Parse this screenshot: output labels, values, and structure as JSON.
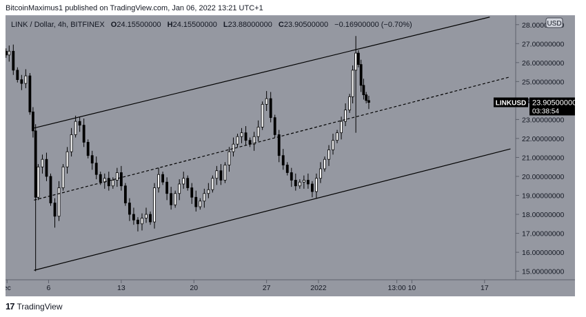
{
  "header": {
    "publish_line": "BitcoinMaximus1 published on TradingView.com, Jan 06, 2022 13:21 UTC+1"
  },
  "chart_info": {
    "symbol_line": "LINK / Dollar, 4h, BITFINEX",
    "ohlc": [
      {
        "k": "O",
        "v": "24.15500000"
      },
      {
        "k": "H",
        "v": "24.15500000"
      },
      {
        "k": "L",
        "v": "23.88000000"
      },
      {
        "k": "C",
        "v": "23.90500000"
      }
    ],
    "change": "−0.16900000 (−0.70%)",
    "currency": "USD"
  },
  "price_tag": {
    "symbol": "LINKUSD",
    "price": "23.90500000",
    "countdown": "03:38:54"
  },
  "footer": {
    "brand": "TradingView",
    "logo_glyph": "17"
  },
  "colors": {
    "background": "#9598a1",
    "candle": "#000000",
    "line": "#000000",
    "tag_bg": "#000000"
  },
  "chart_data": {
    "type": "candlestick",
    "title": "LINK / Dollar, 4h, BITFINEX",
    "y_axis_labels": [
      "15.00000000",
      "16.00000000",
      "17.00000000",
      "18.00000000",
      "19.00000000",
      "20.00000000",
      "21.00000000",
      "22.00000000",
      "23.00000000",
      "24.00000000",
      "25.00000000",
      "26.00000000",
      "27.00000000",
      "28.00000000"
    ],
    "x_axis_labels": [
      {
        "label": "ec",
        "day": 2
      },
      {
        "label": "6",
        "day": 6
      },
      {
        "label": "13",
        "day": 13
      },
      {
        "label": "20",
        "day": 20
      },
      {
        "label": "27",
        "day": 27
      },
      {
        "label": "2022",
        "day": 32
      },
      {
        "label": "13:00",
        "day": 39.55
      },
      {
        "label": "10",
        "day": 41
      },
      {
        "label": "17",
        "day": 48
      }
    ],
    "x_range_days": [
      1.85,
      51.0
    ],
    "ylim": [
      14.55,
      28.5
    ],
    "price_series": [
      {
        "day": 1.9,
        "close": 26.4
      },
      {
        "day": 2.2,
        "close": 26.6
      },
      {
        "day": 2.6,
        "close": 25.6
      },
      {
        "day": 3.0,
        "close": 25.1
      },
      {
        "day": 3.4,
        "close": 24.9
      },
      {
        "day": 3.8,
        "close": 25.3
      },
      {
        "day": 4.2,
        "close": 23.4
      },
      {
        "day": 4.5,
        "close": 22.4
      },
      {
        "day": 4.75,
        "close": 18.9
      },
      {
        "day": 5.0,
        "close": 20.5
      },
      {
        "day": 5.4,
        "close": 20.9
      },
      {
        "day": 5.8,
        "close": 20.0
      },
      {
        "day": 6.2,
        "close": 18.6
      },
      {
        "day": 6.6,
        "close": 17.9
      },
      {
        "day": 7.0,
        "close": 19.4
      },
      {
        "day": 7.4,
        "close": 20.5
      },
      {
        "day": 7.8,
        "close": 21.3
      },
      {
        "day": 8.2,
        "close": 22.2
      },
      {
        "day": 8.6,
        "close": 22.9
      },
      {
        "day": 9.0,
        "close": 22.7
      },
      {
        "day": 9.4,
        "close": 21.8
      },
      {
        "day": 9.8,
        "close": 21.1
      },
      {
        "day": 10.2,
        "close": 20.7
      },
      {
        "day": 10.6,
        "close": 20.1
      },
      {
        "day": 11.0,
        "close": 19.7
      },
      {
        "day": 11.4,
        "close": 19.9
      },
      {
        "day": 11.8,
        "close": 19.5
      },
      {
        "day": 12.2,
        "close": 19.8
      },
      {
        "day": 12.6,
        "close": 20.2
      },
      {
        "day": 13.0,
        "close": 19.5
      },
      {
        "day": 13.4,
        "close": 18.6
      },
      {
        "day": 13.8,
        "close": 18.0
      },
      {
        "day": 14.2,
        "close": 17.7
      },
      {
        "day": 14.6,
        "close": 17.5
      },
      {
        "day": 15.0,
        "close": 17.8
      },
      {
        "day": 15.4,
        "close": 18.0
      },
      {
        "day": 15.8,
        "close": 17.6
      },
      {
        "day": 16.2,
        "close": 19.4
      },
      {
        "day": 16.6,
        "close": 20.1
      },
      {
        "day": 17.0,
        "close": 19.7
      },
      {
        "day": 17.4,
        "close": 19.1
      },
      {
        "day": 17.8,
        "close": 18.5
      },
      {
        "day": 18.2,
        "close": 19.1
      },
      {
        "day": 18.6,
        "close": 19.6
      },
      {
        "day": 19.0,
        "close": 19.9
      },
      {
        "day": 19.4,
        "close": 19.4
      },
      {
        "day": 19.8,
        "close": 18.9
      },
      {
        "day": 20.2,
        "close": 18.4
      },
      {
        "day": 20.6,
        "close": 18.7
      },
      {
        "day": 21.0,
        "close": 19.1
      },
      {
        "day": 21.4,
        "close": 19.3
      },
      {
        "day": 21.8,
        "close": 19.9
      },
      {
        "day": 22.2,
        "close": 20.3
      },
      {
        "day": 22.6,
        "close": 19.8
      },
      {
        "day": 23.0,
        "close": 20.6
      },
      {
        "day": 23.4,
        "close": 21.3
      },
      {
        "day": 23.8,
        "close": 21.7
      },
      {
        "day": 24.2,
        "close": 22.1
      },
      {
        "day": 24.6,
        "close": 22.3
      },
      {
        "day": 25.0,
        "close": 21.9
      },
      {
        "day": 25.4,
        "close": 21.7
      },
      {
        "day": 25.8,
        "close": 22.1
      },
      {
        "day": 26.2,
        "close": 22.6
      },
      {
        "day": 26.6,
        "close": 23.8
      },
      {
        "day": 27.0,
        "close": 24.1
      },
      {
        "day": 27.4,
        "close": 23.1
      },
      {
        "day": 27.8,
        "close": 22.2
      },
      {
        "day": 28.2,
        "close": 21.1
      },
      {
        "day": 28.6,
        "close": 20.6
      },
      {
        "day": 29.0,
        "close": 20.2
      },
      {
        "day": 29.4,
        "close": 19.8
      },
      {
        "day": 29.8,
        "close": 19.5
      },
      {
        "day": 30.2,
        "close": 19.7
      },
      {
        "day": 30.6,
        "close": 19.8
      },
      {
        "day": 31.0,
        "close": 19.6
      },
      {
        "day": 31.4,
        "close": 19.2
      },
      {
        "day": 31.8,
        "close": 19.9
      },
      {
        "day": 32.2,
        "close": 20.4
      },
      {
        "day": 32.6,
        "close": 20.9
      },
      {
        "day": 33.0,
        "close": 21.4
      },
      {
        "day": 33.4,
        "close": 21.9
      },
      {
        "day": 33.8,
        "close": 22.3
      },
      {
        "day": 34.2,
        "close": 22.9
      },
      {
        "day": 34.6,
        "close": 23.5
      },
      {
        "day": 35.0,
        "close": 24.2
      },
      {
        "day": 35.3,
        "close": 25.6
      },
      {
        "day": 35.6,
        "close": 26.5
      },
      {
        "day": 35.85,
        "close": 25.9
      },
      {
        "day": 36.1,
        "close": 24.8
      },
      {
        "day": 36.35,
        "close": 24.3
      },
      {
        "day": 36.6,
        "close": 24.0
      },
      {
        "day": 36.85,
        "close": 23.9
      }
    ],
    "lows": [
      {
        "day": 4.75,
        "low": 15.0
      },
      {
        "day": 6.6,
        "low": 17.3
      },
      {
        "day": 14.6,
        "low": 17.1
      },
      {
        "day": 31.4,
        "low": 18.9
      },
      {
        "day": 35.6,
        "low": 22.3
      }
    ],
    "highs": [
      {
        "day": 2.2,
        "high": 26.9
      },
      {
        "day": 8.6,
        "high": 23.2
      },
      {
        "day": 27.0,
        "high": 24.5
      },
      {
        "day": 35.6,
        "high": 27.4
      }
    ],
    "channel": {
      "upper": [
        {
          "day": 4.6,
          "price": 22.55
        },
        {
          "day": 48.5,
          "price": 28.4
        }
      ],
      "middle": [
        {
          "day": 4.6,
          "price": 18.75
        },
        {
          "day": 50.5,
          "price": 25.25
        }
      ],
      "lower": [
        {
          "day": 4.6,
          "price": 15.05
        },
        {
          "day": 50.5,
          "price": 21.45
        }
      ]
    },
    "last_price": 23.905
  }
}
